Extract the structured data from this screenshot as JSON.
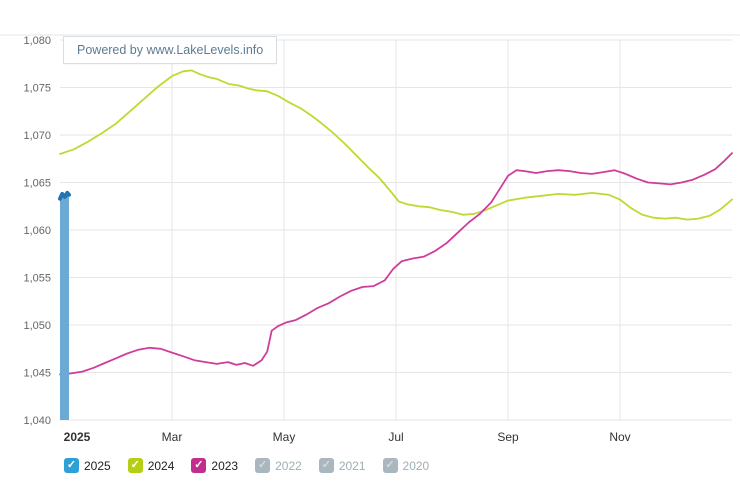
{
  "branding": {
    "powered_by": "Powered by www.LakeLevels.info"
  },
  "chart_data": {
    "type": "line",
    "title": "",
    "xlabel": "",
    "ylabel": "",
    "ylim": [
      1040,
      1080
    ],
    "x_range": [
      0,
      12
    ],
    "grid": true,
    "legend_position": "bottom",
    "yticks": [
      {
        "value": 1040,
        "label": "1,040"
      },
      {
        "value": 1045,
        "label": "1,045"
      },
      {
        "value": 1050,
        "label": "1,050"
      },
      {
        "value": 1055,
        "label": "1,055"
      },
      {
        "value": 1060,
        "label": "1,060"
      },
      {
        "value": 1065,
        "label": "1,065"
      },
      {
        "value": 1070,
        "label": "1,070"
      },
      {
        "value": 1075,
        "label": "1,075"
      },
      {
        "value": 1080,
        "label": "1,080"
      }
    ],
    "xticks": [
      {
        "label": "2025",
        "month": 0,
        "bold": true,
        "grid": false,
        "dx": 17
      },
      {
        "label": "Mar",
        "month": 2,
        "bold": false,
        "grid": true,
        "dx": 0
      },
      {
        "label": "May",
        "month": 4,
        "bold": false,
        "grid": true,
        "dx": 0
      },
      {
        "label": "Jul",
        "month": 6,
        "bold": false,
        "grid": true,
        "dx": 0
      },
      {
        "label": "Sep",
        "month": 8,
        "bold": false,
        "grid": true,
        "dx": 0
      },
      {
        "label": "Nov",
        "month": 10,
        "bold": false,
        "grid": true,
        "dx": 0
      }
    ],
    "series": [
      {
        "name": "2024",
        "color": "#c1d832",
        "width": 1.8,
        "fill_to_base": false,
        "points": [
          [
            0.0,
            1068.0
          ],
          [
            0.25,
            1068.5
          ],
          [
            0.5,
            1069.3
          ],
          [
            0.75,
            1070.2
          ],
          [
            1.0,
            1071.2
          ],
          [
            1.25,
            1072.5
          ],
          [
            1.5,
            1073.8
          ],
          [
            1.75,
            1075.1
          ],
          [
            2.0,
            1076.2
          ],
          [
            2.2,
            1076.7
          ],
          [
            2.35,
            1076.8
          ],
          [
            2.5,
            1076.4
          ],
          [
            2.65,
            1076.1
          ],
          [
            2.8,
            1075.9
          ],
          [
            3.0,
            1075.4
          ],
          [
            3.2,
            1075.2
          ],
          [
            3.35,
            1074.9
          ],
          [
            3.5,
            1074.7
          ],
          [
            3.7,
            1074.6
          ],
          [
            3.9,
            1074.1
          ],
          [
            4.1,
            1073.4
          ],
          [
            4.3,
            1072.8
          ],
          [
            4.5,
            1072.0
          ],
          [
            4.7,
            1071.1
          ],
          [
            4.9,
            1070.1
          ],
          [
            5.1,
            1069.0
          ],
          [
            5.3,
            1067.8
          ],
          [
            5.5,
            1066.6
          ],
          [
            5.7,
            1065.5
          ],
          [
            5.9,
            1064.1
          ],
          [
            6.05,
            1063.0
          ],
          [
            6.2,
            1062.7
          ],
          [
            6.4,
            1062.5
          ],
          [
            6.6,
            1062.4
          ],
          [
            6.8,
            1062.1
          ],
          [
            7.0,
            1061.9
          ],
          [
            7.2,
            1061.6
          ],
          [
            7.4,
            1061.7
          ],
          [
            7.6,
            1062.1
          ],
          [
            7.8,
            1062.6
          ],
          [
            8.0,
            1063.1
          ],
          [
            8.3,
            1063.4
          ],
          [
            8.6,
            1063.6
          ],
          [
            8.9,
            1063.8
          ],
          [
            9.2,
            1063.7
          ],
          [
            9.5,
            1063.9
          ],
          [
            9.8,
            1063.7
          ],
          [
            10.0,
            1063.2
          ],
          [
            10.2,
            1062.3
          ],
          [
            10.4,
            1061.6
          ],
          [
            10.6,
            1061.3
          ],
          [
            10.8,
            1061.2
          ],
          [
            11.0,
            1061.3
          ],
          [
            11.2,
            1061.1
          ],
          [
            11.4,
            1061.2
          ],
          [
            11.6,
            1061.5
          ],
          [
            11.8,
            1062.2
          ],
          [
            12.0,
            1063.2
          ]
        ]
      },
      {
        "name": "2023",
        "color": "#cf3d9a",
        "width": 1.8,
        "fill_to_base": false,
        "points": [
          [
            0.0,
            1044.8
          ],
          [
            0.2,
            1044.9
          ],
          [
            0.4,
            1045.1
          ],
          [
            0.6,
            1045.5
          ],
          [
            0.8,
            1046.0
          ],
          [
            1.0,
            1046.5
          ],
          [
            1.2,
            1047.0
          ],
          [
            1.4,
            1047.4
          ],
          [
            1.6,
            1047.6
          ],
          [
            1.8,
            1047.5
          ],
          [
            2.0,
            1047.1
          ],
          [
            2.2,
            1046.7
          ],
          [
            2.4,
            1046.3
          ],
          [
            2.6,
            1046.1
          ],
          [
            2.8,
            1045.9
          ],
          [
            3.0,
            1046.1
          ],
          [
            3.15,
            1045.8
          ],
          [
            3.3,
            1046.0
          ],
          [
            3.45,
            1045.7
          ],
          [
            3.6,
            1046.3
          ],
          [
            3.7,
            1047.2
          ],
          [
            3.78,
            1049.4
          ],
          [
            3.9,
            1049.9
          ],
          [
            4.05,
            1050.3
          ],
          [
            4.2,
            1050.5
          ],
          [
            4.4,
            1051.1
          ],
          [
            4.6,
            1051.8
          ],
          [
            4.8,
            1052.3
          ],
          [
            5.0,
            1053.0
          ],
          [
            5.2,
            1053.6
          ],
          [
            5.4,
            1054.0
          ],
          [
            5.6,
            1054.1
          ],
          [
            5.8,
            1054.7
          ],
          [
            5.95,
            1055.9
          ],
          [
            6.1,
            1056.7
          ],
          [
            6.3,
            1057.0
          ],
          [
            6.5,
            1057.2
          ],
          [
            6.7,
            1057.8
          ],
          [
            6.9,
            1058.6
          ],
          [
            7.1,
            1059.7
          ],
          [
            7.3,
            1060.8
          ],
          [
            7.5,
            1061.7
          ],
          [
            7.7,
            1062.9
          ],
          [
            7.85,
            1064.3
          ],
          [
            8.0,
            1065.7
          ],
          [
            8.15,
            1066.3
          ],
          [
            8.3,
            1066.2
          ],
          [
            8.5,
            1066.0
          ],
          [
            8.7,
            1066.2
          ],
          [
            8.9,
            1066.3
          ],
          [
            9.1,
            1066.2
          ],
          [
            9.3,
            1066.0
          ],
          [
            9.5,
            1065.9
          ],
          [
            9.7,
            1066.1
          ],
          [
            9.9,
            1066.3
          ],
          [
            10.1,
            1065.9
          ],
          [
            10.3,
            1065.4
          ],
          [
            10.5,
            1065.0
          ],
          [
            10.7,
            1064.9
          ],
          [
            10.9,
            1064.8
          ],
          [
            11.1,
            1065.0
          ],
          [
            11.3,
            1065.3
          ],
          [
            11.5,
            1065.8
          ],
          [
            11.7,
            1066.4
          ],
          [
            11.85,
            1067.2
          ],
          [
            12.0,
            1068.1
          ]
        ]
      },
      {
        "name": "2025",
        "color": "#2274b4",
        "fill": "#6caad5",
        "width": 4,
        "fill_to_base": true,
        "points": [
          [
            0.0,
            1063.3
          ],
          [
            0.04,
            1063.8
          ],
          [
            0.09,
            1063.5
          ],
          [
            0.13,
            1063.9
          ],
          [
            0.16,
            1063.7
          ]
        ]
      }
    ]
  },
  "legend": {
    "items": [
      {
        "label": "2025",
        "color": "#2f9fd8",
        "checked": true
      },
      {
        "label": "2024",
        "color": "#b5cf17",
        "checked": true
      },
      {
        "label": "2023",
        "color": "#c12e8e",
        "checked": true
      },
      {
        "label": "2022",
        "color": "#a9b7bf",
        "checked": false
      },
      {
        "label": "2021",
        "color": "#a9b7bf",
        "checked": false
      },
      {
        "label": "2020",
        "color": "#a9b7bf",
        "checked": false
      }
    ]
  },
  "colors": {
    "grid": "#e6e6e6",
    "axis_text": "#666666",
    "x_axis_text": "#333333",
    "muted_label": "#9faeb6"
  }
}
